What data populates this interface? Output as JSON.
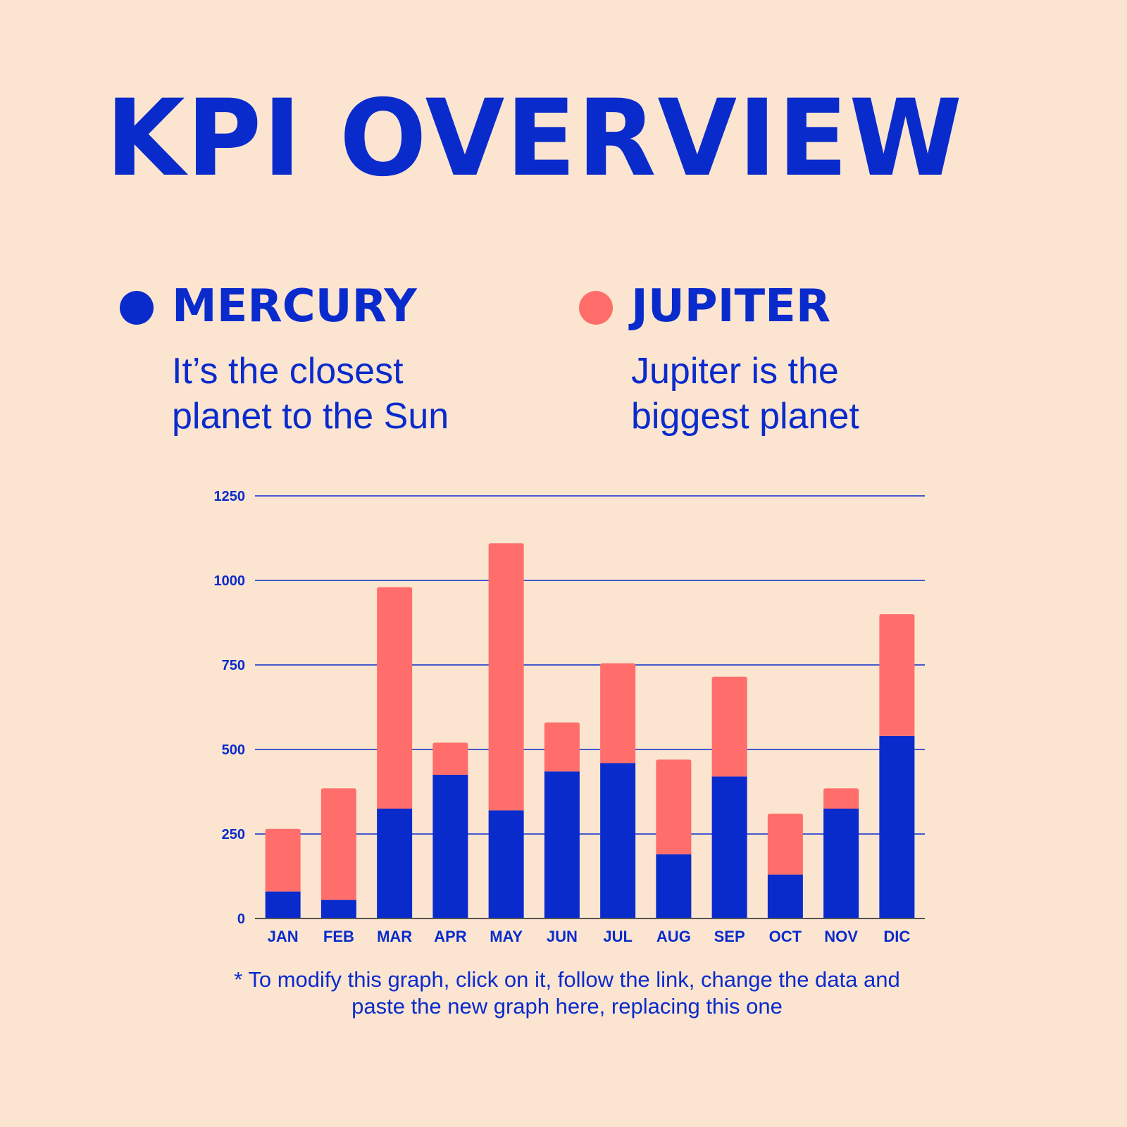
{
  "title": "KPI OVERVIEW",
  "colors": {
    "background": "#fce5d0",
    "primary": "#0a2bcc",
    "accent": "#ff6e6a",
    "axis": "#555555"
  },
  "legend": [
    {
      "name": "MERCURY",
      "description": "It’s the closest planet to the Sun",
      "color": "#0a2bcc"
    },
    {
      "name": "JUPITER",
      "description": "Jupiter is the biggest planet",
      "color": "#ff6e6a"
    }
  ],
  "chart_data": {
    "type": "bar",
    "stacked": true,
    "categories": [
      "JAN",
      "FEB",
      "MAR",
      "APR",
      "MAY",
      "JUN",
      "JUL",
      "AUG",
      "SEP",
      "OCT",
      "NOV",
      "DIC"
    ],
    "series": [
      {
        "name": "MERCURY",
        "color": "#0a2bcc",
        "values": [
          80,
          55,
          325,
          425,
          320,
          435,
          460,
          190,
          420,
          130,
          325,
          540
        ]
      },
      {
        "name": "JUPITER",
        "color": "#ff6e6a",
        "values": [
          185,
          330,
          655,
          95,
          790,
          145,
          295,
          280,
          295,
          180,
          60,
          360
        ]
      }
    ],
    "ylim": [
      0,
      1250
    ],
    "yticks": [
      0,
      250,
      500,
      750,
      1000,
      1250
    ],
    "grid": true,
    "title": "",
    "xlabel": "",
    "ylabel": ""
  },
  "note": "* To modify this graph, click on it, follow the link, change the data and paste the new graph here, replacing this one"
}
